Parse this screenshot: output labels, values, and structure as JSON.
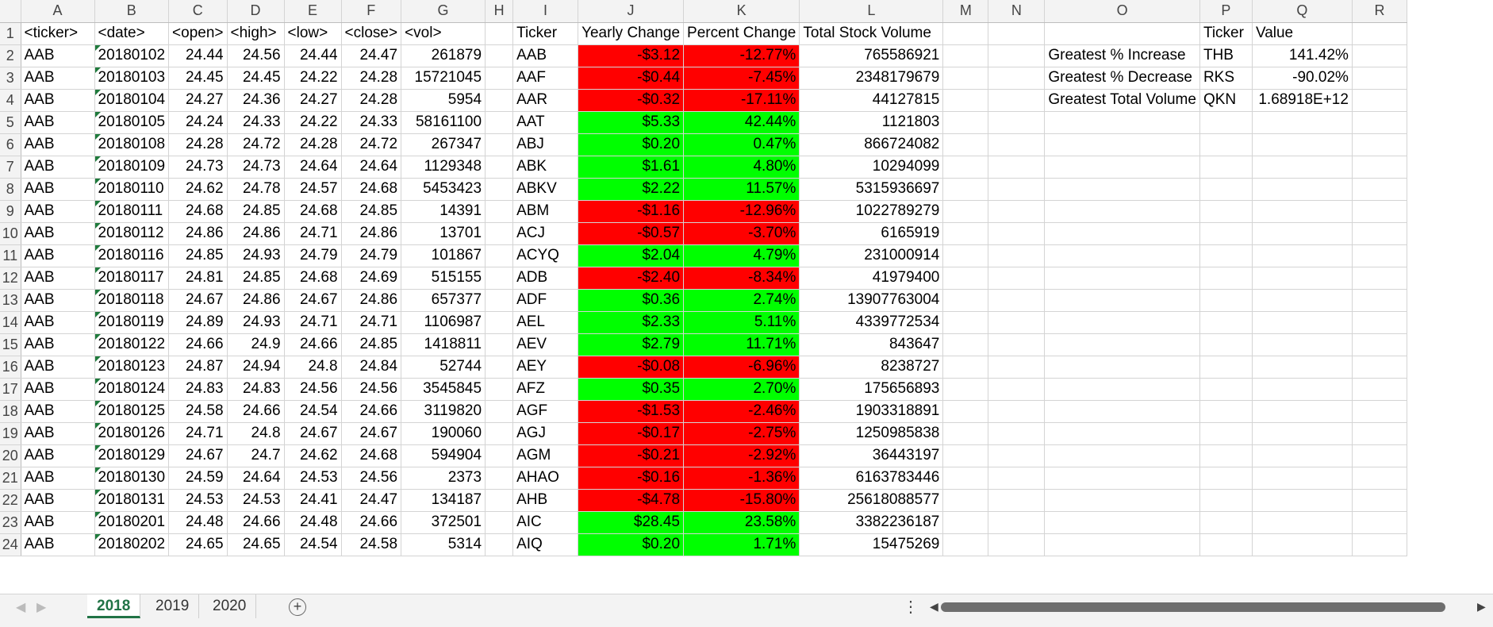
{
  "columns": [
    "A",
    "B",
    "C",
    "D",
    "E",
    "F",
    "G",
    "H",
    "I",
    "J",
    "K",
    "L",
    "M",
    "N",
    "O",
    "P",
    "Q",
    "R"
  ],
  "raw_headers": [
    "<ticker>",
    "<date>",
    "<open>",
    "<high>",
    "<low>",
    "<close>",
    "<vol>"
  ],
  "raw_rows": [
    [
      "AAB",
      "20180102",
      "24.44",
      "24.56",
      "24.44",
      "24.47",
      "261879"
    ],
    [
      "AAB",
      "20180103",
      "24.45",
      "24.45",
      "24.22",
      "24.28",
      "15721045"
    ],
    [
      "AAB",
      "20180104",
      "24.27",
      "24.36",
      "24.27",
      "24.28",
      "5954"
    ],
    [
      "AAB",
      "20180105",
      "24.24",
      "24.33",
      "24.22",
      "24.33",
      "58161100"
    ],
    [
      "AAB",
      "20180108",
      "24.28",
      "24.72",
      "24.28",
      "24.72",
      "267347"
    ],
    [
      "AAB",
      "20180109",
      "24.73",
      "24.73",
      "24.64",
      "24.64",
      "1129348"
    ],
    [
      "AAB",
      "20180110",
      "24.62",
      "24.78",
      "24.57",
      "24.68",
      "5453423"
    ],
    [
      "AAB",
      "20180111",
      "24.68",
      "24.85",
      "24.68",
      "24.85",
      "14391"
    ],
    [
      "AAB",
      "20180112",
      "24.86",
      "24.86",
      "24.71",
      "24.86",
      "13701"
    ],
    [
      "AAB",
      "20180116",
      "24.85",
      "24.93",
      "24.79",
      "24.79",
      "101867"
    ],
    [
      "AAB",
      "20180117",
      "24.81",
      "24.85",
      "24.68",
      "24.69",
      "515155"
    ],
    [
      "AAB",
      "20180118",
      "24.67",
      "24.86",
      "24.67",
      "24.86",
      "657377"
    ],
    [
      "AAB",
      "20180119",
      "24.89",
      "24.93",
      "24.71",
      "24.71",
      "1106987"
    ],
    [
      "AAB",
      "20180122",
      "24.66",
      "24.9",
      "24.66",
      "24.85",
      "1418811"
    ],
    [
      "AAB",
      "20180123",
      "24.87",
      "24.94",
      "24.8",
      "24.84",
      "52744"
    ],
    [
      "AAB",
      "20180124",
      "24.83",
      "24.83",
      "24.56",
      "24.56",
      "3545845"
    ],
    [
      "AAB",
      "20180125",
      "24.58",
      "24.66",
      "24.54",
      "24.66",
      "3119820"
    ],
    [
      "AAB",
      "20180126",
      "24.71",
      "24.8",
      "24.67",
      "24.67",
      "190060"
    ],
    [
      "AAB",
      "20180129",
      "24.67",
      "24.7",
      "24.62",
      "24.68",
      "594904"
    ],
    [
      "AAB",
      "20180130",
      "24.59",
      "24.64",
      "24.53",
      "24.56",
      "2373"
    ],
    [
      "AAB",
      "20180131",
      "24.53",
      "24.53",
      "24.41",
      "24.47",
      "134187"
    ],
    [
      "AAB",
      "20180201",
      "24.48",
      "24.66",
      "24.48",
      "24.66",
      "372501"
    ],
    [
      "AAB",
      "20180202",
      "24.65",
      "24.65",
      "24.54",
      "24.58",
      "5314"
    ]
  ],
  "summary_headers": [
    "Ticker",
    "Yearly Change",
    "Percent Change",
    "Total Stock Volume"
  ],
  "summary_rows": [
    [
      "AAB",
      "-$3.12",
      "-12.77%",
      "765586921",
      "neg"
    ],
    [
      "AAF",
      "-$0.44",
      "-7.45%",
      "2348179679",
      "neg"
    ],
    [
      "AAR",
      "-$0.32",
      "-17.11%",
      "44127815",
      "neg"
    ],
    [
      "AAT",
      "$5.33",
      "42.44%",
      "1121803",
      "pos"
    ],
    [
      "ABJ",
      "$0.20",
      "0.47%",
      "866724082",
      "pos"
    ],
    [
      "ABK",
      "$1.61",
      "4.80%",
      "10294099",
      "pos"
    ],
    [
      "ABKV",
      "$2.22",
      "11.57%",
      "5315936697",
      "pos"
    ],
    [
      "ABM",
      "-$1.16",
      "-12.96%",
      "1022789279",
      "neg"
    ],
    [
      "ACJ",
      "-$0.57",
      "-3.70%",
      "6165919",
      "neg"
    ],
    [
      "ACYQ",
      "$2.04",
      "4.79%",
      "231000914",
      "pos"
    ],
    [
      "ADB",
      "-$2.40",
      "-8.34%",
      "41979400",
      "neg"
    ],
    [
      "ADF",
      "$0.36",
      "2.74%",
      "13907763004",
      "pos"
    ],
    [
      "AEL",
      "$2.33",
      "5.11%",
      "4339772534",
      "pos"
    ],
    [
      "AEV",
      "$2.79",
      "11.71%",
      "843647",
      "pos"
    ],
    [
      "AEY",
      "-$0.08",
      "-6.96%",
      "8238727",
      "neg"
    ],
    [
      "AFZ",
      "$0.35",
      "2.70%",
      "175656893",
      "pos"
    ],
    [
      "AGF",
      "-$1.53",
      "-2.46%",
      "1903318891",
      "neg"
    ],
    [
      "AGJ",
      "-$0.17",
      "-2.75%",
      "1250985838",
      "neg"
    ],
    [
      "AGM",
      "-$0.21",
      "-2.92%",
      "36443197",
      "neg"
    ],
    [
      "AHAO",
      "-$0.16",
      "-1.36%",
      "6163783446",
      "neg"
    ],
    [
      "AHB",
      "-$4.78",
      "-15.80%",
      "25618088577",
      "neg"
    ],
    [
      "AIC",
      "$28.45",
      "23.58%",
      "3382236187",
      "pos"
    ],
    [
      "AIQ",
      "$0.20",
      "1.71%",
      "15475269",
      "pos"
    ]
  ],
  "greatest_headers": [
    "Ticker",
    "Value"
  ],
  "greatest_rows": [
    [
      "Greatest % Increase",
      "THB",
      "141.42%"
    ],
    [
      "Greatest % Decrease",
      "RKS",
      "-90.02%"
    ],
    [
      "Greatest Total Volume",
      "QKN",
      "1.68918E+12"
    ]
  ],
  "sheet_tabs": [
    "2018",
    "2019",
    "2020"
  ],
  "active_tab": "2018",
  "colors": {
    "negative_fill": "#ff0000",
    "positive_fill": "#00ff00",
    "accent": "#217346"
  },
  "icons": {
    "prev": "chevron-left-icon",
    "next": "chevron-right-icon",
    "add": "plus-icon",
    "more": "more-dots-icon"
  }
}
